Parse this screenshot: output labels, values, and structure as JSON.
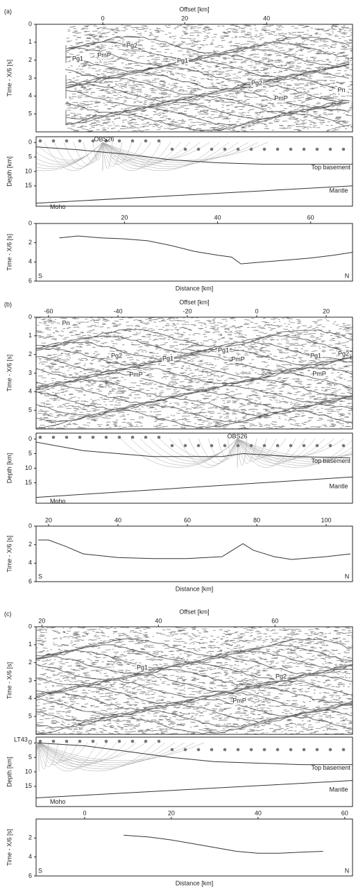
{
  "chart_data": [
    {
      "type": "image",
      "label": "(a)",
      "xlabel": "Offset [km]",
      "ylabel": "Time - X/6 [s]",
      "xlim": [
        -16.3,
        61
      ],
      "xticks": [
        0,
        20,
        40
      ],
      "ylim": [
        0,
        6
      ],
      "yticks": [
        0,
        1,
        2,
        3,
        4,
        5
      ],
      "annotations": [
        "Pg1",
        "PmP",
        "Pg2",
        "Pg1",
        "Pg2",
        "PmP",
        "Pn"
      ]
    },
    {
      "type": "line",
      "ylabel": "Depth [km]",
      "xlim": [
        1,
        69
      ],
      "ylim": [
        -2,
        22
      ],
      "yticks": [
        0,
        5,
        10,
        15
      ],
      "annotations": [
        "OBS26",
        "Mantle"
      ],
      "series": [
        {
          "name": "Top basement",
          "x": [
            1,
            10,
            20,
            30,
            40,
            50,
            60,
            69
          ],
          "values": [
            1.5,
            2.5,
            4,
            6,
            7,
            7.5,
            7.5,
            7.5
          ]
        },
        {
          "name": "Moho",
          "x": [
            1,
            69
          ],
          "values": [
            21,
            15
          ]
        }
      ]
    },
    {
      "type": "line",
      "xlabel": "Distance [km]",
      "ylabel": "Time - X/6 [s]",
      "xlim": [
        1,
        69
      ],
      "xticks": [
        20,
        40,
        60
      ],
      "ylim": [
        0,
        6
      ],
      "yticks": [
        0,
        2,
        4,
        6
      ],
      "annotations": [
        "S",
        "N"
      ],
      "series": [
        {
          "x": [
            6,
            10,
            15,
            20,
            25,
            30,
            35,
            40,
            43,
            45,
            50,
            55,
            60,
            65,
            69
          ],
          "values": [
            1.5,
            1.3,
            1.5,
            1.6,
            1.8,
            2.3,
            2.9,
            3.3,
            3.5,
            4.2,
            4.0,
            3.8,
            3.6,
            3.3,
            3.0
          ]
        }
      ]
    },
    {
      "type": "image",
      "label": "(b)",
      "xlabel": "Offset [km]",
      "ylabel": "Time - X/6 [s]",
      "xlim": [
        -63.6,
        27.6
      ],
      "xticks": [
        -60,
        -40,
        -20,
        0,
        20
      ],
      "ylim": [
        0,
        6
      ],
      "yticks": [
        0,
        1,
        2,
        3,
        4,
        5
      ],
      "annotations": [
        "Pn",
        "Pg2",
        "PmP",
        "Pg1",
        "Pg1",
        "PmP",
        "Pg1",
        "PmP",
        "Pg2"
      ]
    },
    {
      "type": "line",
      "ylabel": "Depth [km]",
      "xlim": [
        16.4,
        107.6
      ],
      "ylim": [
        -2,
        22
      ],
      "yticks": [
        0,
        5,
        10,
        15
      ],
      "annotations": [
        "OBS26",
        "Mantle"
      ],
      "series": [
        {
          "name": "Top basement",
          "x": [
            16,
            30,
            50,
            70,
            76,
            90,
            107
          ],
          "values": [
            1,
            4,
            6,
            6,
            5,
            6,
            6.5
          ]
        },
        {
          "name": "Moho",
          "x": [
            16.4,
            107.6
          ],
          "values": [
            20,
            13
          ]
        }
      ]
    },
    {
      "type": "line",
      "xlabel": "Distance [km]",
      "ylabel": "Time - X/6 [s]",
      "xlim": [
        16.4,
        107.6
      ],
      "xticks": [
        20,
        40,
        60,
        80,
        100
      ],
      "ylim": [
        0,
        6
      ],
      "yticks": [
        0,
        2,
        4,
        6
      ],
      "annotations": [
        "S",
        "N"
      ],
      "series": [
        {
          "x": [
            17,
            20,
            25,
            30,
            40,
            50,
            60,
            70,
            73,
            76,
            79,
            85,
            90,
            100,
            107
          ],
          "values": [
            1.5,
            1.5,
            2.2,
            3,
            3.4,
            3.5,
            3.5,
            3.3,
            2.6,
            1.9,
            2.6,
            3.3,
            3.6,
            3.3,
            3.0
          ]
        }
      ]
    },
    {
      "type": "image",
      "label": "(c)",
      "xlabel": "Offset [km]",
      "ylabel": "Time - X/6 [s]",
      "xlim": [
        19,
        73.3
      ],
      "xticks": [
        20,
        40,
        60
      ],
      "ylim": [
        0,
        6
      ],
      "yticks": [
        0,
        1,
        2,
        3,
        4,
        5
      ],
      "annotations": [
        "Pg1",
        "Pg2",
        "PmP"
      ]
    },
    {
      "type": "line",
      "ylabel": "Depth [km]",
      "xlim": [
        -11.2,
        61.8
      ],
      "ylim": [
        -2,
        22
      ],
      "yticks": [
        0,
        5,
        10,
        15
      ],
      "annotations": [
        "LT43",
        "Mantle"
      ],
      "series": [
        {
          "name": "Top basement",
          "x": [
            -11,
            0,
            10,
            20,
            30,
            40,
            50,
            61.8
          ],
          "values": [
            0,
            1,
            3,
            5,
            6.5,
            7,
            7.5,
            7.5
          ]
        },
        {
          "name": "Moho",
          "x": [
            -11.2,
            61.8
          ],
          "values": [
            19,
            13
          ]
        }
      ]
    },
    {
      "type": "line",
      "xlabel": "Distance [km]",
      "ylabel": "Time - X/6 [s]",
      "xlim": [
        -11.2,
        61.8
      ],
      "xticks": [
        0,
        20,
        40,
        60
      ],
      "ylim": [
        0,
        6
      ],
      "yticks": [
        2,
        4,
        6
      ],
      "annotations": [
        "S",
        "N"
      ],
      "series": [
        {
          "x": [
            9,
            15,
            20,
            25,
            30,
            35,
            40,
            45,
            50,
            55
          ],
          "values": [
            1.7,
            1.9,
            2.2,
            2.6,
            3.0,
            3.4,
            3.6,
            3.6,
            3.5,
            3.4
          ]
        }
      ]
    }
  ]
}
